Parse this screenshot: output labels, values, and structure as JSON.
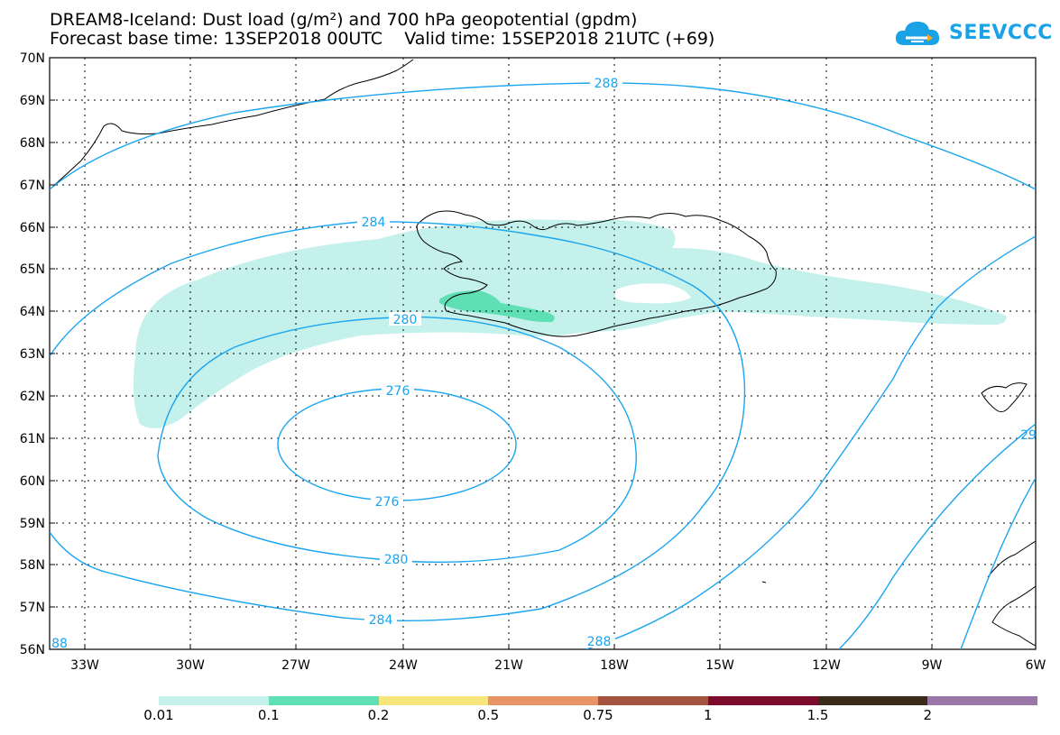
{
  "title": {
    "line1": "DREAM8-Iceland: Dust load (g/m²) and 700 hPa geopotential (gpdm)",
    "line2": "Forecast base time: 13SEP2018 00UTC    Valid time: 15SEP2018 21UTC (+69)"
  },
  "logo": {
    "text": "SEEVCCC"
  },
  "axes": {
    "lat_labels": [
      "70N",
      "69N",
      "68N",
      "67N",
      "66N",
      "65N",
      "64N",
      "63N",
      "62N",
      "61N",
      "60N",
      "59N",
      "58N",
      "57N",
      "56N"
    ],
    "lon_labels": [
      "33W",
      "30W",
      "27W",
      "24W",
      "21W",
      "18W",
      "15W",
      "12W",
      "9W",
      "6W"
    ]
  },
  "contours": {
    "labels": [
      "288",
      "284",
      "280",
      "276",
      "276",
      "280",
      "284",
      "288",
      "288",
      "29",
      "88"
    ]
  },
  "colorbar": {
    "levels": [
      "0.01",
      "0.1",
      "0.2",
      "0.5",
      "0.75",
      "1",
      "1.5",
      "2"
    ],
    "colors": [
      "#c4f1ec",
      "#5edfb4",
      "#f7e67c",
      "#e99466",
      "#a65440",
      "#7d0c2c",
      "#3b2a17",
      "#9b77a8"
    ]
  }
}
